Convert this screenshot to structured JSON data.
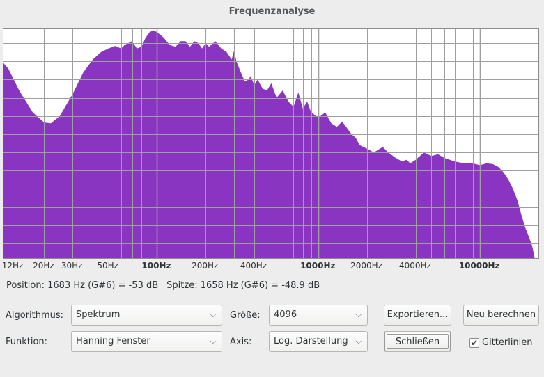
{
  "window": {
    "title": "Frequenzanalyse"
  },
  "plot": {
    "fill_color": "#8a35c2",
    "grid_color": "#9f9f9f",
    "x_scale": "log",
    "x_range_hz": [
      11.2,
      23000
    ],
    "y_range_db": [
      -84,
      -21
    ],
    "ticks": [
      {
        "hz": 12,
        "label": "12Hz",
        "major": false
      },
      {
        "hz": 20,
        "label": "20Hz",
        "major": false
      },
      {
        "hz": 30,
        "label": "30Hz",
        "major": false
      },
      {
        "hz": 50,
        "label": "50Hz",
        "major": false
      },
      {
        "hz": 100,
        "label": "100Hz",
        "major": true
      },
      {
        "hz": 200,
        "label": "200Hz",
        "major": false
      },
      {
        "hz": 400,
        "label": "400Hz",
        "major": false
      },
      {
        "hz": 1000,
        "label": "1000Hz",
        "major": true
      },
      {
        "hz": 2000,
        "label": "2000Hz",
        "major": false
      },
      {
        "hz": 4000,
        "label": "4000Hz",
        "major": false
      },
      {
        "hz": 10000,
        "label": "10000Hz",
        "major": true
      }
    ],
    "spectrum": [
      [
        11.2,
        -30.5
      ],
      [
        12,
        -32
      ],
      [
        14,
        -38
      ],
      [
        17,
        -44
      ],
      [
        20,
        -46.8
      ],
      [
        22,
        -47
      ],
      [
        25,
        -45
      ],
      [
        30,
        -39
      ],
      [
        35,
        -33
      ],
      [
        40,
        -29.5
      ],
      [
        45,
        -27.5
      ],
      [
        50,
        -26.5
      ],
      [
        55,
        -25.8
      ],
      [
        60,
        -26.5
      ],
      [
        63,
        -25.5
      ],
      [
        70,
        -24.5
      ],
      [
        75,
        -26.5
      ],
      [
        80,
        -26
      ],
      [
        85,
        -23.5
      ],
      [
        90,
        -22
      ],
      [
        95,
        -21.5
      ],
      [
        100,
        -22
      ],
      [
        110,
        -23.5
      ],
      [
        120,
        -25.5
      ],
      [
        130,
        -26
      ],
      [
        140,
        -24.5
      ],
      [
        150,
        -24.5
      ],
      [
        160,
        -26
      ],
      [
        170,
        -24.5
      ],
      [
        180,
        -25
      ],
      [
        190,
        -26.5
      ],
      [
        200,
        -25
      ],
      [
        210,
        -26
      ],
      [
        230,
        -24.5
      ],
      [
        250,
        -26.5
      ],
      [
        270,
        -27.5
      ],
      [
        290,
        -29.5
      ],
      [
        300,
        -27
      ],
      [
        310,
        -30
      ],
      [
        330,
        -33
      ],
      [
        350,
        -35.5
      ],
      [
        370,
        -35
      ],
      [
        380,
        -34
      ],
      [
        400,
        -36.5
      ],
      [
        420,
        -35
      ],
      [
        450,
        -37.5
      ],
      [
        480,
        -38
      ],
      [
        510,
        -36
      ],
      [
        550,
        -40
      ],
      [
        600,
        -38
      ],
      [
        650,
        -41
      ],
      [
        700,
        -42.5
      ],
      [
        750,
        -38.5
      ],
      [
        800,
        -43
      ],
      [
        850,
        -41
      ],
      [
        900,
        -44
      ],
      [
        1000,
        -45.5
      ],
      [
        1100,
        -44
      ],
      [
        1200,
        -47
      ],
      [
        1300,
        -48
      ],
      [
        1400,
        -46.5
      ],
      [
        1600,
        -50
      ],
      [
        1700,
        -51
      ],
      [
        1800,
        -53
      ],
      [
        2000,
        -54
      ],
      [
        2200,
        -55
      ],
      [
        2500,
        -53.5
      ],
      [
        2700,
        -55
      ],
      [
        3000,
        -56.5
      ],
      [
        3300,
        -57.5
      ],
      [
        3500,
        -57
      ],
      [
        3700,
        -58
      ],
      [
        4000,
        -57
      ],
      [
        4500,
        -55
      ],
      [
        5000,
        -56
      ],
      [
        5500,
        -55.5
      ],
      [
        6000,
        -56.5
      ],
      [
        7000,
        -57.5
      ],
      [
        8000,
        -58
      ],
      [
        9000,
        -58
      ],
      [
        10000,
        -58.5
      ],
      [
        11000,
        -58
      ],
      [
        12000,
        -58.2
      ],
      [
        13000,
        -59
      ],
      [
        14000,
        -60.5
      ],
      [
        15000,
        -62.5
      ],
      [
        16000,
        -65
      ],
      [
        17000,
        -68
      ],
      [
        18000,
        -72
      ],
      [
        19000,
        -75.5
      ],
      [
        20000,
        -78
      ],
      [
        21000,
        -80.5
      ],
      [
        21800,
        -84
      ]
    ]
  },
  "status": {
    "position": "Position: 1683 Hz (G#6) = -53 dB",
    "peak": "Spitze: 1658 Hz (G#6) = -48.9 dB"
  },
  "controls": {
    "algorithm_label": "Algorithmus:",
    "algorithm_value": "Spektrum",
    "function_label": "Funktion:",
    "function_value": "Hanning Fenster",
    "size_label": "Größe:",
    "size_value": "4096",
    "axis_label": "Axis:",
    "axis_value": "Log. Darstellung",
    "export_button": "Exportieren...",
    "recalc_button": "Neu berechnen",
    "close_button": "Schließen",
    "gridlines_label": "Gitterlinien",
    "gridlines_checked": true
  },
  "icons": {
    "dropdown": "chevron-down-icon",
    "checkbox": "check-icon"
  }
}
